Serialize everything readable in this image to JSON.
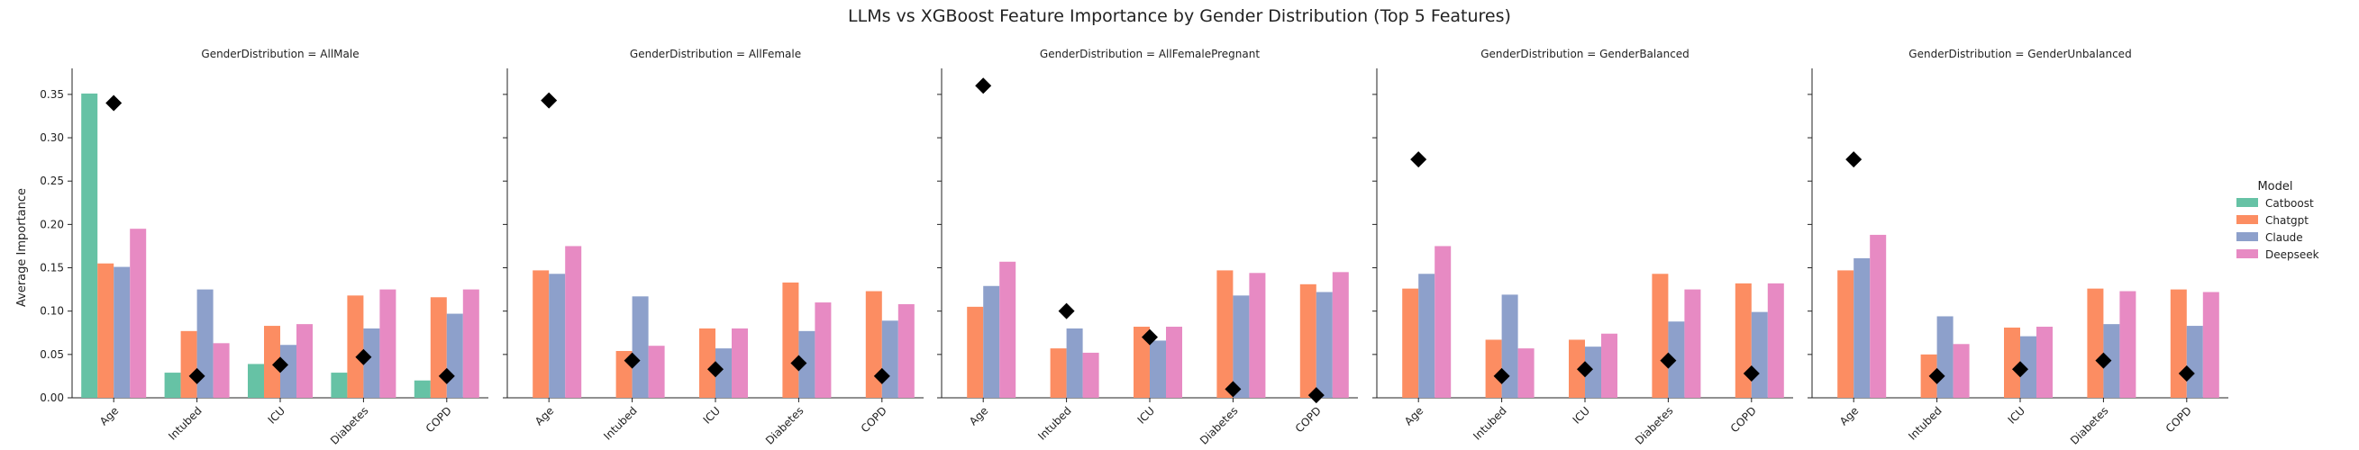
{
  "title": "LLMs vs XGBoost Feature Importance by Gender Distribution (Top 5 Features)",
  "colors": {
    "Catboost": "#66c2a5",
    "Chatgpt": "#fc8d62",
    "Claude": "#8da0cb",
    "Deepseek": "#e78ac3",
    "marker": "#000000"
  },
  "legend": {
    "title": "Model",
    "items": [
      "Catboost",
      "Chatgpt",
      "Claude",
      "Deepseek"
    ]
  },
  "chart_data": {
    "type": "bar",
    "ylabel": "Average Importance",
    "ylim": [
      0,
      0.38
    ],
    "yticks": [
      "0.00",
      "0.05",
      "0.10",
      "0.15",
      "0.20",
      "0.25",
      "0.30",
      "0.35"
    ],
    "categories": [
      "Age",
      "Intubed",
      "ICU",
      "Diabetes",
      "COPD"
    ],
    "marker_shape": "diamond",
    "panels": [
      {
        "label": "GenderDistribution = AllMale",
        "series": [
          {
            "name": "Catboost",
            "values": [
              0.351,
              0.029,
              0.039,
              0.029,
              0.02
            ]
          },
          {
            "name": "Chatgpt",
            "values": [
              0.155,
              0.077,
              0.083,
              0.118,
              0.116
            ]
          },
          {
            "name": "Claude",
            "values": [
              0.151,
              0.125,
              0.061,
              0.08,
              0.097
            ]
          },
          {
            "name": "Deepseek",
            "values": [
              0.195,
              0.063,
              0.085,
              0.125,
              0.125
            ]
          }
        ],
        "markers": [
          0.34,
          0.025,
          0.038,
          0.047,
          0.025
        ]
      },
      {
        "label": "GenderDistribution = AllFemale",
        "series": [
          {
            "name": "Catboost",
            "values": [
              0,
              0,
              0,
              0,
              0
            ]
          },
          {
            "name": "Chatgpt",
            "values": [
              0.147,
              0.054,
              0.08,
              0.133,
              0.123
            ]
          },
          {
            "name": "Claude",
            "values": [
              0.143,
              0.117,
              0.057,
              0.077,
              0.089
            ]
          },
          {
            "name": "Deepseek",
            "values": [
              0.175,
              0.06,
              0.08,
              0.11,
              0.108
            ]
          }
        ],
        "markers": [
          0.343,
          0.043,
          0.033,
          0.04,
          0.025
        ]
      },
      {
        "label": "GenderDistribution = AllFemalePregnant",
        "series": [
          {
            "name": "Catboost",
            "values": [
              0,
              0,
              0,
              0,
              0
            ]
          },
          {
            "name": "Chatgpt",
            "values": [
              0.105,
              0.057,
              0.082,
              0.147,
              0.131
            ]
          },
          {
            "name": "Claude",
            "values": [
              0.129,
              0.08,
              0.066,
              0.118,
              0.122
            ]
          },
          {
            "name": "Deepseek",
            "values": [
              0.157,
              0.052,
              0.082,
              0.144,
              0.145
            ]
          }
        ],
        "markers": [
          0.36,
          0.1,
          0.07,
          0.01,
          0.003
        ]
      },
      {
        "label": "GenderDistribution = GenderBalanced",
        "series": [
          {
            "name": "Catboost",
            "values": [
              0,
              0,
              0,
              0,
              0
            ]
          },
          {
            "name": "Chatgpt",
            "values": [
              0.126,
              0.067,
              0.067,
              0.143,
              0.132
            ]
          },
          {
            "name": "Claude",
            "values": [
              0.143,
              0.119,
              0.059,
              0.088,
              0.099
            ]
          },
          {
            "name": "Deepseek",
            "values": [
              0.175,
              0.057,
              0.074,
              0.125,
              0.132
            ]
          }
        ],
        "markers": [
          0.275,
          0.025,
          0.033,
          0.043,
          0.028
        ]
      },
      {
        "label": "GenderDistribution = GenderUnbalanced",
        "series": [
          {
            "name": "Catboost",
            "values": [
              0,
              0,
              0,
              0,
              0
            ]
          },
          {
            "name": "Chatgpt",
            "values": [
              0.147,
              0.05,
              0.081,
              0.126,
              0.125
            ]
          },
          {
            "name": "Claude",
            "values": [
              0.161,
              0.094,
              0.071,
              0.085,
              0.083
            ]
          },
          {
            "name": "Deepseek",
            "values": [
              0.188,
              0.062,
              0.082,
              0.123,
              0.122
            ]
          }
        ],
        "markers": [
          0.275,
          0.025,
          0.033,
          0.043,
          0.028
        ]
      }
    ]
  }
}
